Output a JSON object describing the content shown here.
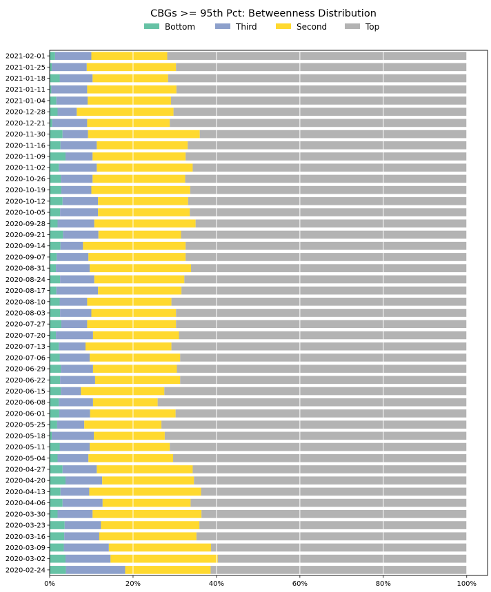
{
  "chart_data": {
    "type": "bar",
    "orientation": "horizontal",
    "stacked": true,
    "title": "CBGs >= 95th Pct: Betweenness Distribution",
    "xlabel": "",
    "ylabel": "",
    "xlim": [
      0,
      1.05
    ],
    "x_ticks": [
      "0%",
      "20%",
      "40%",
      "60%",
      "80%",
      "100%"
    ],
    "grid": "vertical",
    "legend_position": "top-center",
    "categories": [
      "2021-02-01",
      "2021-01-25",
      "2021-01-18",
      "2021-01-11",
      "2021-01-04",
      "2020-12-28",
      "2020-12-21",
      "2020-11-30",
      "2020-11-16",
      "2020-11-09",
      "2020-11-02",
      "2020-10-26",
      "2020-10-19",
      "2020-10-12",
      "2020-10-05",
      "2020-09-28",
      "2020-09-21",
      "2020-09-14",
      "2020-09-07",
      "2020-08-31",
      "2020-08-24",
      "2020-08-17",
      "2020-08-10",
      "2020-08-03",
      "2020-07-27",
      "2020-07-20",
      "2020-07-13",
      "2020-07-06",
      "2020-06-29",
      "2020-06-22",
      "2020-06-15",
      "2020-06-08",
      "2020-06-01",
      "2020-05-25",
      "2020-05-18",
      "2020-05-11",
      "2020-05-04",
      "2020-04-27",
      "2020-04-20",
      "2020-04-13",
      "2020-04-06",
      "2020-03-30",
      "2020-03-23",
      "2020-03-16",
      "2020-03-09",
      "2020-03-02",
      "2020-02-24"
    ],
    "series": [
      {
        "name": "Bottom",
        "color": "#66c2a5",
        "values": [
          0.013,
          0.005,
          0.024,
          0.004,
          0.016,
          0.019,
          0.006,
          0.031,
          0.026,
          0.038,
          0.022,
          0.027,
          0.028,
          0.031,
          0.025,
          0.019,
          0.032,
          0.026,
          0.017,
          0.015,
          0.025,
          0.016,
          0.024,
          0.025,
          0.028,
          0.015,
          0.022,
          0.024,
          0.027,
          0.025,
          0.027,
          0.022,
          0.023,
          0.018,
          0.005,
          0.024,
          0.019,
          0.031,
          0.038,
          0.026,
          0.031,
          0.019,
          0.036,
          0.035,
          0.034,
          0.038,
          0.039
        ]
      },
      {
        "name": "Third",
        "color": "#8da0cb",
        "values": [
          0.087,
          0.084,
          0.079,
          0.086,
          0.075,
          0.046,
          0.084,
          0.061,
          0.087,
          0.065,
          0.091,
          0.076,
          0.072,
          0.085,
          0.091,
          0.088,
          0.085,
          0.054,
          0.076,
          0.081,
          0.082,
          0.1,
          0.066,
          0.075,
          0.062,
          0.089,
          0.064,
          0.072,
          0.077,
          0.084,
          0.048,
          0.082,
          0.074,
          0.065,
          0.101,
          0.072,
          0.074,
          0.082,
          0.088,
          0.069,
          0.096,
          0.084,
          0.087,
          0.084,
          0.108,
          0.108,
          0.142
        ]
      },
      {
        "name": "Second",
        "color": "#ffd92f",
        "values": [
          0.182,
          0.214,
          0.181,
          0.214,
          0.2,
          0.232,
          0.198,
          0.268,
          0.218,
          0.223,
          0.23,
          0.222,
          0.237,
          0.216,
          0.22,
          0.243,
          0.198,
          0.246,
          0.233,
          0.243,
          0.216,
          0.2,
          0.202,
          0.203,
          0.213,
          0.206,
          0.206,
          0.217,
          0.201,
          0.204,
          0.2,
          0.155,
          0.205,
          0.185,
          0.17,
          0.192,
          0.203,
          0.23,
          0.22,
          0.268,
          0.211,
          0.261,
          0.236,
          0.233,
          0.245,
          0.257,
          0.205
        ]
      },
      {
        "name": "Top",
        "color": "#b3b3b3",
        "values": [
          0.718,
          0.697,
          0.716,
          0.696,
          0.709,
          0.703,
          0.712,
          0.64,
          0.669,
          0.674,
          0.657,
          0.675,
          0.663,
          0.668,
          0.664,
          0.65,
          0.685,
          0.674,
          0.674,
          0.661,
          0.677,
          0.684,
          0.708,
          0.697,
          0.697,
          0.69,
          0.708,
          0.687,
          0.695,
          0.687,
          0.725,
          0.741,
          0.698,
          0.732,
          0.724,
          0.712,
          0.704,
          0.657,
          0.654,
          0.637,
          0.662,
          0.636,
          0.641,
          0.648,
          0.613,
          0.597,
          0.614
        ]
      }
    ]
  }
}
